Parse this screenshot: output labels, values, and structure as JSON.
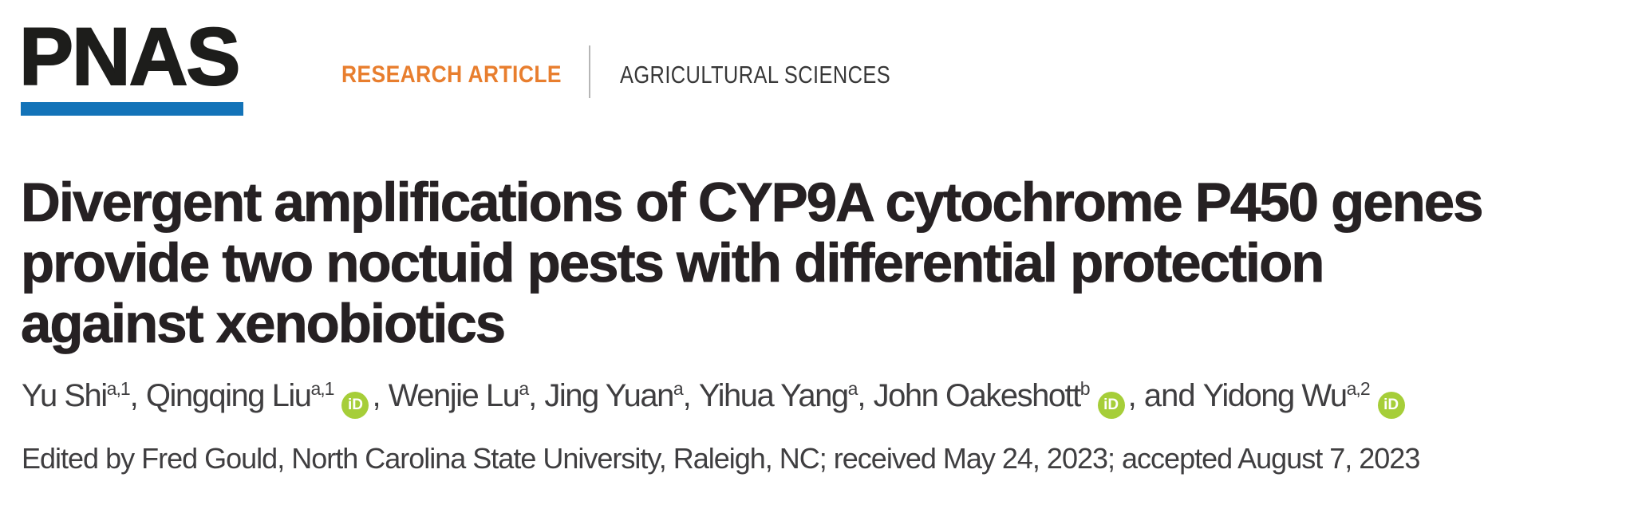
{
  "masthead": {
    "logo": "PNAS",
    "article_type": "RESEARCH ARTICLE",
    "section": "AGRICULTURAL SCIENCES"
  },
  "title": {
    "lines": [
      "Divergent amplifications of CYP9A cytochrome P450 genes",
      "provide two noctuid pests with differential protection",
      "against xenobiotics"
    ]
  },
  "authors": {
    "orcid_icon_label": "iD",
    "items": [
      {
        "name": "Yu Shi",
        "affiliations": "a,1",
        "orcid": false,
        "separator": ", "
      },
      {
        "name": "Qingqing Liu",
        "affiliations": "a,1",
        "orcid": true,
        "separator": ", "
      },
      {
        "name": "Wenjie Lu",
        "affiliations": "a",
        "orcid": false,
        "separator": ", "
      },
      {
        "name": "Jing Yuan",
        "affiliations": "a",
        "orcid": false,
        "separator": ", "
      },
      {
        "name": "Yihua Yang",
        "affiliations": "a",
        "orcid": false,
        "separator": ", "
      },
      {
        "name": "John Oakeshott",
        "affiliations": "b",
        "orcid": true,
        "separator": ", and "
      },
      {
        "name": "Yidong Wu",
        "affiliations": "a,2",
        "orcid": true,
        "separator": ""
      }
    ]
  },
  "editor_line": "Edited by Fred Gould, North Carolina State University, Raleigh, NC; received May 24, 2023; accepted August 7, 2023",
  "colors": {
    "pnas_blue": "#1373b8",
    "article_type_orange": "#e87e2e",
    "orcid_green": "#a6ce39",
    "title_ink": "#262123",
    "body_ink": "#3f3e40",
    "divider_gray": "#b6b6b6"
  }
}
